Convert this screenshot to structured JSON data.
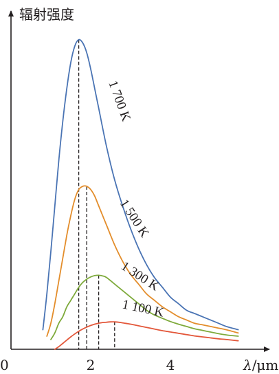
{
  "chart_data": {
    "type": "line",
    "title": "",
    "ylabel": "辐射强度",
    "xlabel": "λ/μm",
    "xlabel_italic_part": "λ",
    "xlabel_unit_part": "/μm",
    "origin_label": "0",
    "x_ticks": [
      {
        "value": 2,
        "label": "2"
      },
      {
        "value": 4,
        "label": "4"
      }
    ],
    "xlim": [
      0,
      5.7
    ],
    "ylim": [
      0,
      1.0
    ],
    "y_axis_tick_labels": false,
    "grid": false,
    "legend": "none",
    "series": [
      {
        "name": "1 700 K",
        "color": "#4a74b4",
        "peak_x": 1.7,
        "x": [
          0.8,
          0.9,
          1.0,
          1.1,
          1.2,
          1.3,
          1.4,
          1.5,
          1.6,
          1.7,
          1.8,
          1.9,
          2.0,
          2.1,
          2.2,
          2.4,
          2.6,
          2.8,
          3.0,
          3.2,
          3.4,
          3.6,
          3.8,
          4.0,
          4.2,
          4.4,
          4.6,
          4.8,
          5.0,
          5.2,
          5.4,
          5.7
        ],
        "values": [
          0.06,
          0.17,
          0.3,
          0.44,
          0.58,
          0.7,
          0.8,
          0.88,
          0.93,
          0.95,
          0.94,
          0.91,
          0.86,
          0.8,
          0.74,
          0.62,
          0.52,
          0.44,
          0.37,
          0.31,
          0.26,
          0.22,
          0.19,
          0.16,
          0.14,
          0.12,
          0.11,
          0.1,
          0.09,
          0.08,
          0.07,
          0.06
        ]
      },
      {
        "name": "1 500 K",
        "color": "#e38d2b",
        "peak_x": 1.9,
        "x": [
          0.9,
          1.0,
          1.1,
          1.2,
          1.3,
          1.4,
          1.5,
          1.6,
          1.7,
          1.8,
          1.9,
          2.0,
          2.1,
          2.2,
          2.4,
          2.6,
          2.8,
          3.0,
          3.2,
          3.4,
          3.6,
          3.8,
          4.0,
          4.2,
          4.4,
          4.6,
          4.8,
          5.0,
          5.2,
          5.4,
          5.7
        ],
        "values": [
          0.04,
          0.08,
          0.14,
          0.21,
          0.28,
          0.35,
          0.41,
          0.46,
          0.49,
          0.5,
          0.5,
          0.49,
          0.47,
          0.44,
          0.38,
          0.32,
          0.27,
          0.23,
          0.2,
          0.17,
          0.15,
          0.13,
          0.115,
          0.1,
          0.09,
          0.08,
          0.075,
          0.07,
          0.065,
          0.06,
          0.05
        ]
      },
      {
        "name": "1 300 K",
        "color": "#7eaa3b",
        "peak_x": 2.2,
        "x": [
          1.0,
          1.1,
          1.2,
          1.3,
          1.4,
          1.5,
          1.6,
          1.7,
          1.8,
          1.9,
          2.0,
          2.1,
          2.2,
          2.3,
          2.4,
          2.6,
          2.8,
          3.0,
          3.2,
          3.4,
          3.6,
          3.8,
          4.0,
          4.2,
          4.4,
          4.6,
          4.8,
          5.0,
          5.2,
          5.4,
          5.7
        ],
        "values": [
          0.03,
          0.05,
          0.08,
          0.1,
          0.13,
          0.15,
          0.17,
          0.19,
          0.205,
          0.215,
          0.222,
          0.226,
          0.227,
          0.225,
          0.22,
          0.2,
          0.18,
          0.16,
          0.14,
          0.12,
          0.105,
          0.095,
          0.085,
          0.077,
          0.07,
          0.063,
          0.058,
          0.053,
          0.048,
          0.044,
          0.04
        ]
      },
      {
        "name": "1 100 K",
        "color": "#e3573a",
        "peak_x": 2.6,
        "x": [
          1.1,
          1.2,
          1.3,
          1.4,
          1.5,
          1.6,
          1.7,
          1.8,
          1.9,
          2.0,
          2.1,
          2.2,
          2.3,
          2.4,
          2.5,
          2.6,
          2.7,
          2.8,
          3.0,
          3.2,
          3.4,
          3.6,
          3.8,
          4.0,
          4.2,
          4.4,
          4.6,
          4.8,
          5.0,
          5.2,
          5.4,
          5.7
        ],
        "values": [
          0.0,
          0.008,
          0.018,
          0.028,
          0.038,
          0.047,
          0.055,
          0.062,
          0.068,
          0.073,
          0.077,
          0.08,
          0.082,
          0.083,
          0.084,
          0.084,
          0.083,
          0.081,
          0.077,
          0.072,
          0.067,
          0.062,
          0.057,
          0.053,
          0.049,
          0.045,
          0.041,
          0.038,
          0.035,
          0.032,
          0.03,
          0.026
        ]
      }
    ]
  }
}
